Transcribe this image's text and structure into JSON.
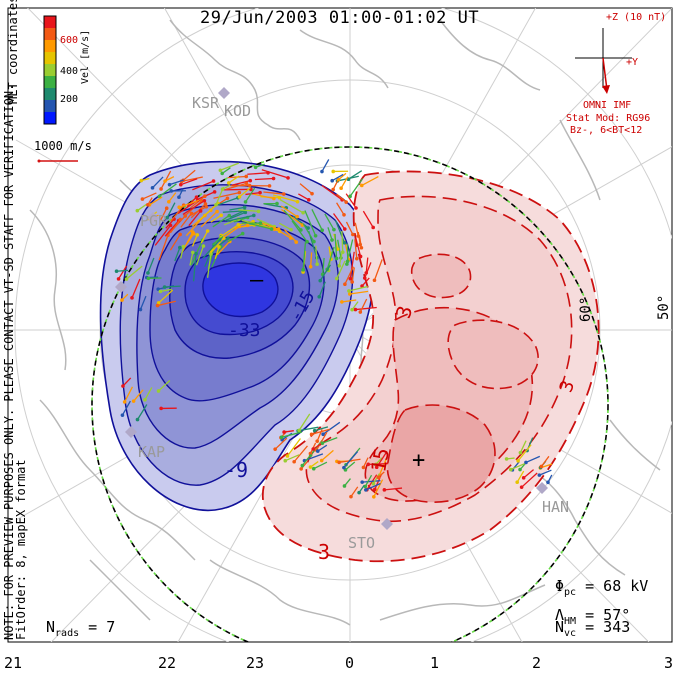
{
  "title": "29/Jun/2003 01:00-01:02 UT",
  "side_note_line1": "NOTE: FOR PREVIEW PURPOSES ONLY. PLEASE CONTACT VT-SD STAFF FOR VERIFICATION.",
  "side_note_line2": "FitOrder: 8, mapEX format",
  "coords_label": "MLT coordinates",
  "colorbar": {
    "label": "Vel [m/s]",
    "ticks": [
      "600",
      "400",
      "200"
    ],
    "colors": [
      "#e8151b",
      "#f35a14",
      "#ff9a00",
      "#e6c400",
      "#9acd32",
      "#3cb043",
      "#1e8a6e",
      "#2456b0",
      "#0018ff"
    ]
  },
  "velocity_scale_label": "1000 m/s",
  "imf": {
    "z_label": "+Z (10 nT)",
    "y_label": "+Y",
    "source": "OMNI IMF",
    "model_line1": "Stat Mod: RG96",
    "model_line2": "Bz-, 6<BT<12"
  },
  "stations": [
    "KSR",
    "KOD",
    "PGR",
    "KAP",
    "STO",
    "HAN"
  ],
  "latitude_labels": [
    "60°",
    "50°"
  ],
  "contour_labels": [
    "-33",
    "-15",
    "-9",
    "3",
    "15",
    "3",
    "3"
  ],
  "stats": {
    "phi_label": "Φ",
    "phi_sub": "pc",
    "phi_value": "= 68 kV",
    "lambda_label": "Λ",
    "lambda_sub": "HM",
    "lambda_value": "= 57°",
    "nvc_label": "N",
    "nvc_sub": "vc",
    "nvc_value": "= 343",
    "nrads_label": "N",
    "nrads_sub": "rads",
    "nrads_value": "= 7"
  },
  "mlt_ticks": [
    "21",
    "22",
    "23",
    "0",
    "1",
    "2",
    "3"
  ],
  "marker_plus": "+",
  "marker_minus": "–"
}
